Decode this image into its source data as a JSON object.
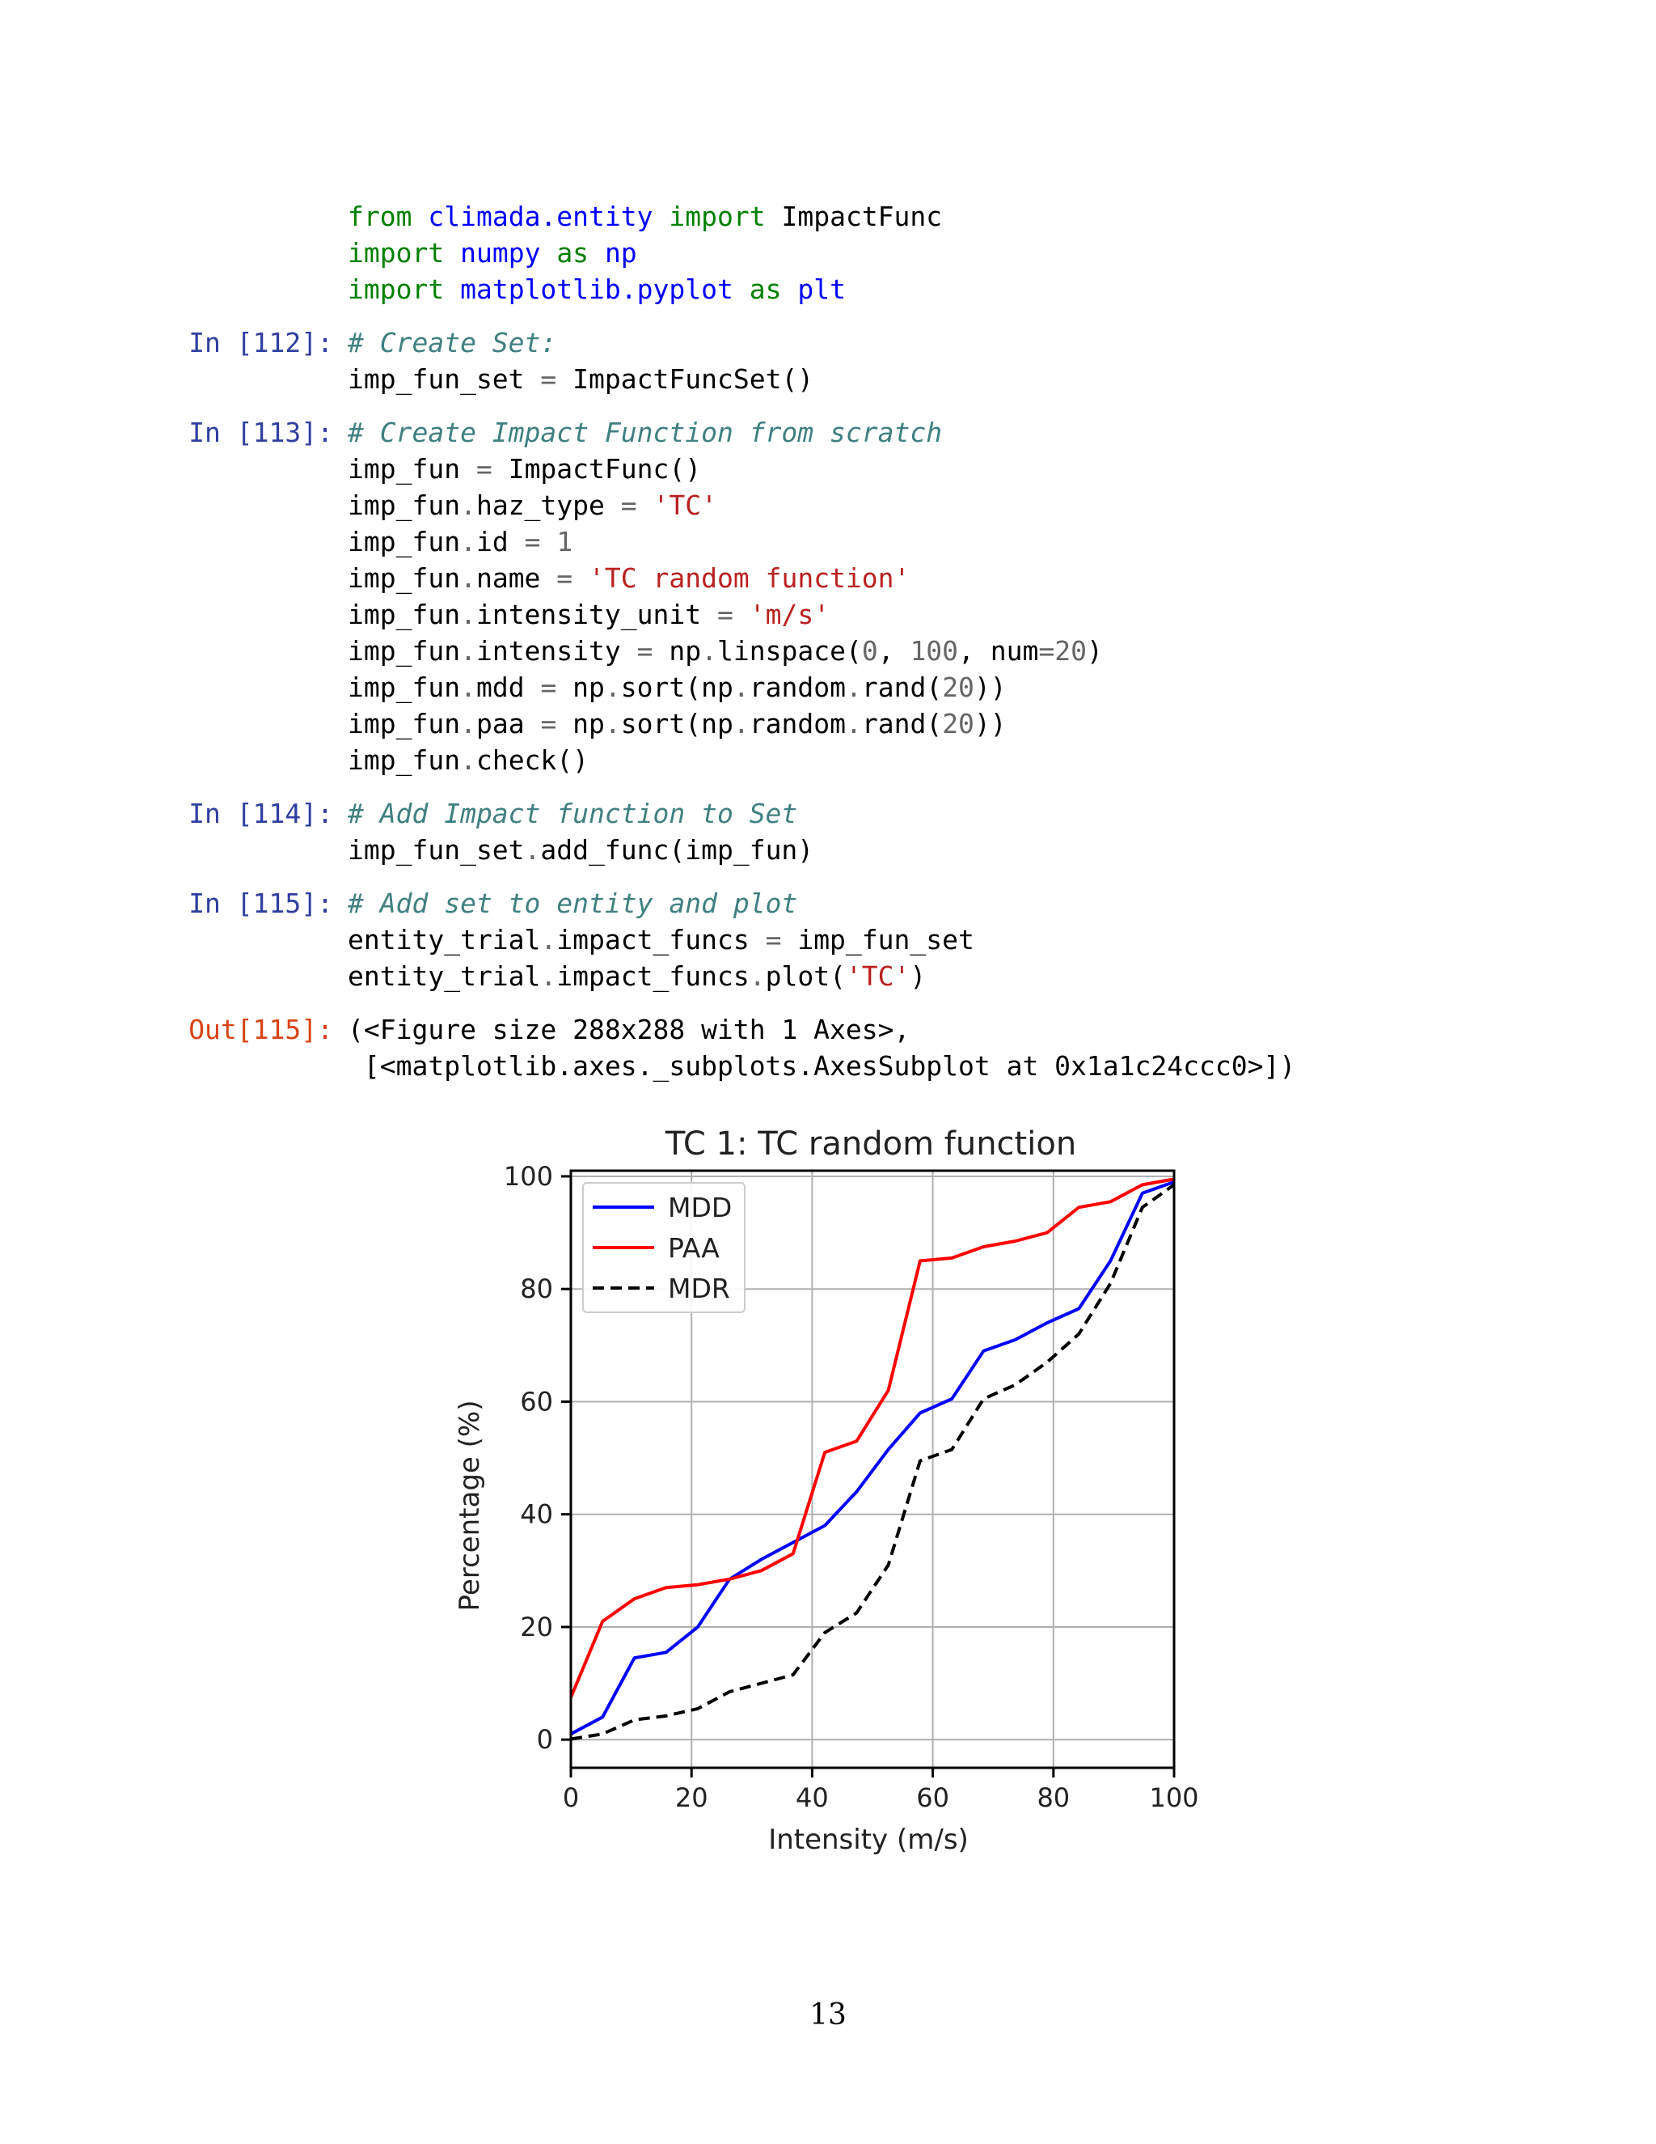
{
  "cells": [
    {
      "prompt": "",
      "kind": "code",
      "lines": [
        [
          [
            "kw",
            "from"
          ],
          [
            "t",
            " "
          ],
          [
            "mod",
            "climada.entity"
          ],
          [
            "t",
            " "
          ],
          [
            "kw",
            "import"
          ],
          [
            "t",
            " ImpactFunc"
          ]
        ],
        [
          [
            "kw",
            "import"
          ],
          [
            "t",
            " "
          ],
          [
            "mod",
            "numpy"
          ],
          [
            "t",
            " "
          ],
          [
            "kw",
            "as"
          ],
          [
            "t",
            " "
          ],
          [
            "mod",
            "np"
          ]
        ],
        [
          [
            "kw",
            "import"
          ],
          [
            "t",
            " "
          ],
          [
            "mod",
            "matplotlib.pyplot"
          ],
          [
            "t",
            " "
          ],
          [
            "kw",
            "as"
          ],
          [
            "t",
            " "
          ],
          [
            "mod",
            "plt"
          ]
        ]
      ]
    },
    {
      "prompt": "In [112]:",
      "kind": "code",
      "lines": [
        [
          [
            "cm",
            "# Create Set:"
          ]
        ],
        [
          [
            "t",
            "imp_fun_set "
          ],
          [
            "op",
            "="
          ],
          [
            "t",
            " ImpactFuncSet()"
          ]
        ]
      ]
    },
    {
      "prompt": "In [113]:",
      "kind": "code",
      "lines": [
        [
          [
            "cm",
            "# Create Impact Function from scratch"
          ]
        ],
        [
          [
            "t",
            "imp_fun "
          ],
          [
            "op",
            "="
          ],
          [
            "t",
            " ImpactFunc()"
          ]
        ],
        [
          [
            "t",
            "imp_fun"
          ],
          [
            "op",
            "."
          ],
          [
            "t",
            "haz_type "
          ],
          [
            "op",
            "="
          ],
          [
            "t",
            " "
          ],
          [
            "str",
            "'TC'"
          ]
        ],
        [
          [
            "t",
            "imp_fun"
          ],
          [
            "op",
            "."
          ],
          [
            "t",
            "id "
          ],
          [
            "op",
            "="
          ],
          [
            "t",
            " "
          ],
          [
            "num",
            "1"
          ]
        ],
        [
          [
            "t",
            "imp_fun"
          ],
          [
            "op",
            "."
          ],
          [
            "t",
            "name "
          ],
          [
            "op",
            "="
          ],
          [
            "t",
            " "
          ],
          [
            "str",
            "'TC random function'"
          ]
        ],
        [
          [
            "t",
            "imp_fun"
          ],
          [
            "op",
            "."
          ],
          [
            "t",
            "intensity_unit "
          ],
          [
            "op",
            "="
          ],
          [
            "t",
            " "
          ],
          [
            "str",
            "'m/s'"
          ]
        ],
        [
          [
            "t",
            "imp_fun"
          ],
          [
            "op",
            "."
          ],
          [
            "t",
            "intensity "
          ],
          [
            "op",
            "="
          ],
          [
            "t",
            " np"
          ],
          [
            "op",
            "."
          ],
          [
            "t",
            "linspace("
          ],
          [
            "num",
            "0"
          ],
          [
            "t",
            ", "
          ],
          [
            "num",
            "100"
          ],
          [
            "t",
            ", num"
          ],
          [
            "op",
            "="
          ],
          [
            "num",
            "20"
          ],
          [
            "t",
            ")"
          ]
        ],
        [
          [
            "t",
            "imp_fun"
          ],
          [
            "op",
            "."
          ],
          [
            "t",
            "mdd "
          ],
          [
            "op",
            "="
          ],
          [
            "t",
            " np"
          ],
          [
            "op",
            "."
          ],
          [
            "t",
            "sort(np"
          ],
          [
            "op",
            "."
          ],
          [
            "t",
            "random"
          ],
          [
            "op",
            "."
          ],
          [
            "t",
            "rand("
          ],
          [
            "num",
            "20"
          ],
          [
            "t",
            "))"
          ]
        ],
        [
          [
            "t",
            "imp_fun"
          ],
          [
            "op",
            "."
          ],
          [
            "t",
            "paa "
          ],
          [
            "op",
            "="
          ],
          [
            "t",
            " np"
          ],
          [
            "op",
            "."
          ],
          [
            "t",
            "sort(np"
          ],
          [
            "op",
            "."
          ],
          [
            "t",
            "random"
          ],
          [
            "op",
            "."
          ],
          [
            "t",
            "rand("
          ],
          [
            "num",
            "20"
          ],
          [
            "t",
            "))"
          ]
        ],
        [
          [
            "t",
            "imp_fun"
          ],
          [
            "op",
            "."
          ],
          [
            "t",
            "check()"
          ]
        ]
      ]
    },
    {
      "prompt": "In [114]:",
      "kind": "code",
      "lines": [
        [
          [
            "cm",
            "# Add Impact function to Set"
          ]
        ],
        [
          [
            "t",
            "imp_fun_set"
          ],
          [
            "op",
            "."
          ],
          [
            "t",
            "add_func(imp_fun)"
          ]
        ]
      ]
    },
    {
      "prompt": "In [115]:",
      "kind": "code",
      "lines": [
        [
          [
            "cm",
            "# Add set to entity and plot"
          ]
        ],
        [
          [
            "t",
            "entity_trial"
          ],
          [
            "op",
            "."
          ],
          [
            "t",
            "impact_funcs "
          ],
          [
            "op",
            "="
          ],
          [
            "t",
            " imp_fun_set"
          ]
        ],
        [
          [
            "t",
            "entity_trial"
          ],
          [
            "op",
            "."
          ],
          [
            "t",
            "impact_funcs"
          ],
          [
            "op",
            "."
          ],
          [
            "t",
            "plot("
          ],
          [
            "str",
            "'TC'"
          ],
          [
            "t",
            ")"
          ]
        ]
      ]
    },
    {
      "prompt": "Out[115]:",
      "kind": "output",
      "lines": [
        [
          [
            "t",
            "(<Figure size 288x288 with 1 Axes>,"
          ]
        ],
        [
          [
            "t",
            " [<matplotlib.axes._subplots.AxesSubplot at 0x1a1c24ccc0>])"
          ]
        ]
      ]
    }
  ],
  "chart_data": {
    "type": "line",
    "title": "TC 1: TC random function",
    "xlabel": "Intensity (m/s)",
    "ylabel": "Percentage (%)",
    "xlim": [
      0,
      100
    ],
    "ylim": [
      -5,
      101
    ],
    "xticks": [
      0,
      20,
      40,
      60,
      80,
      100
    ],
    "yticks": [
      0,
      20,
      40,
      60,
      80,
      100
    ],
    "grid": true,
    "legend_position": "top-left",
    "x": [
      0,
      5.26,
      10.53,
      15.79,
      21.05,
      26.32,
      31.58,
      36.84,
      42.11,
      47.37,
      52.63,
      57.89,
      63.16,
      68.42,
      73.68,
      78.95,
      84.21,
      89.47,
      94.74,
      100
    ],
    "series": [
      {
        "name": "MDD",
        "color": "#0000ff",
        "style": "solid",
        "values": [
          1,
          4,
          14.5,
          15.5,
          20,
          28.5,
          32,
          35,
          38,
          44,
          51.5,
          58,
          60.5,
          69,
          71,
          74,
          76.5,
          85,
          97,
          99
        ]
      },
      {
        "name": "PAA",
        "color": "#ff0000",
        "style": "solid",
        "values": [
          7.5,
          21,
          25,
          27,
          27.5,
          28.5,
          30,
          33,
          51,
          53,
          62,
          85,
          85.5,
          87.5,
          88.5,
          90,
          94.5,
          95.5,
          98.5,
          99.5
        ]
      },
      {
        "name": "MDR",
        "color": "#000000",
        "style": "dashed",
        "values": [
          0.1,
          1,
          3.5,
          4.2,
          5.5,
          8.5,
          10,
          11.5,
          19,
          22.5,
          31,
          49.5,
          51.5,
          60.5,
          63,
          67,
          72,
          81,
          94.5,
          98.5
        ]
      }
    ]
  },
  "page_number": "13"
}
